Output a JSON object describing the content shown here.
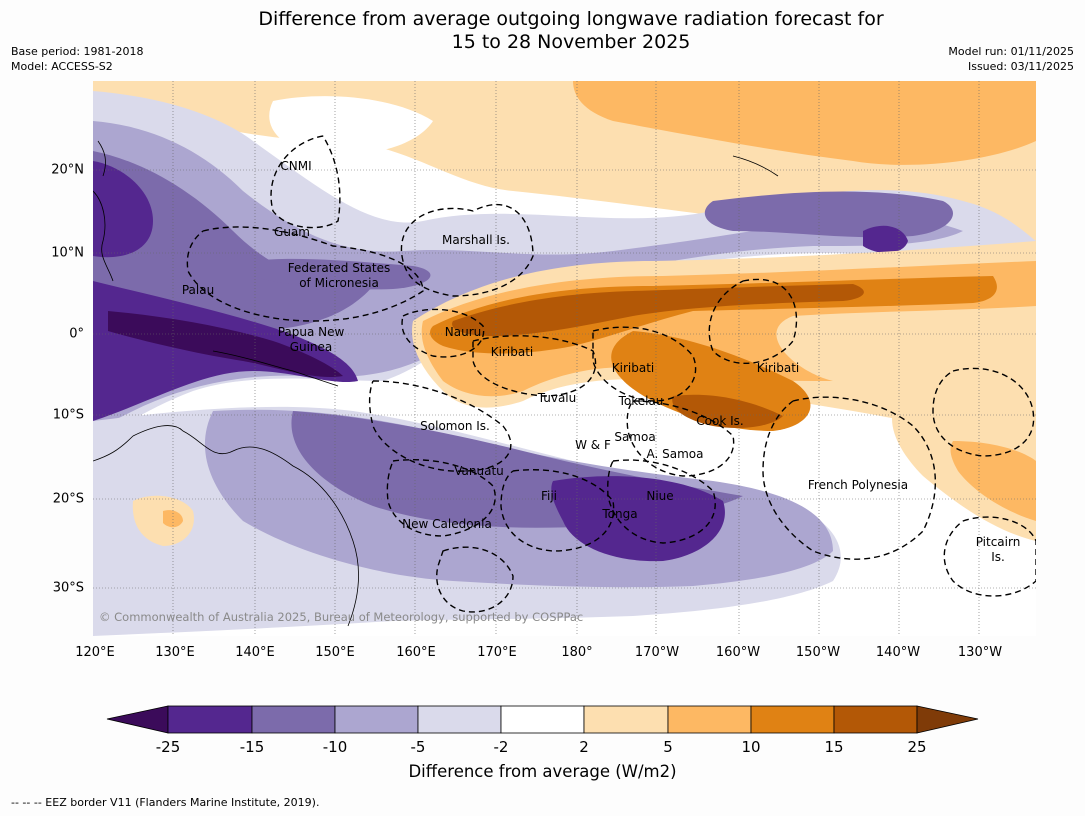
{
  "header": {
    "title_line1": "Difference from average outgoing longwave radiation forecast for",
    "title_line2": "15 to 28 November 2025",
    "base_period": "Base period: 1981-2018",
    "model": "Model: ACCESS-S2",
    "model_run": "Model run: 01/11/2025",
    "issued": "Issued: 03/11/2025"
  },
  "axes": {
    "lon_ticks": [
      "120°E",
      "130°E",
      "140°E",
      "150°E",
      "160°E",
      "170°E",
      "180°",
      "170°W",
      "160°W",
      "150°W",
      "140°W",
      "130°W"
    ],
    "lat_ticks": [
      "20°N",
      "10°N",
      "0°",
      "10°S",
      "20°S",
      "30°S"
    ]
  },
  "map_labels": [
    "CNMI",
    "Guam",
    "Marshall Is.",
    "Federated States",
    "of Micronesia",
    "Palau",
    "Nauru",
    "Papua New",
    "Guinea",
    "Kiribati",
    "Kiribati",
    "Kiribati",
    "Tuvalu",
    "Tokelau",
    "Cook Is.",
    "Solomon Is.",
    "Samoa",
    "W & F",
    "A. Samoa",
    "Vanuatu",
    "Fiji",
    "Niue",
    "Tonga",
    "French Polynesia",
    "New Caledonia",
    "Pitcairn",
    "Is."
  ],
  "copyright": "© Commonwealth of Australia 2025, Bureau of Meteorology, supported by COSPPac",
  "colorbar": {
    "ticks": [
      "-25",
      "-15",
      "-10",
      "-5",
      "-2",
      "2",
      "5",
      "10",
      "15",
      "25"
    ],
    "colors": [
      "#3b0b5a",
      "#54278f",
      "#7c6bab",
      "#aca6d0",
      "#dadaeb",
      "#ffffff",
      "#fddfb0",
      "#fdb863",
      "#e08214",
      "#b35806",
      "#7f3b08"
    ],
    "label": "Difference from average (W/m2)"
  },
  "footer": "--  --  -- EEZ border V11 (Flanders Marine Institute, 2019)."
}
